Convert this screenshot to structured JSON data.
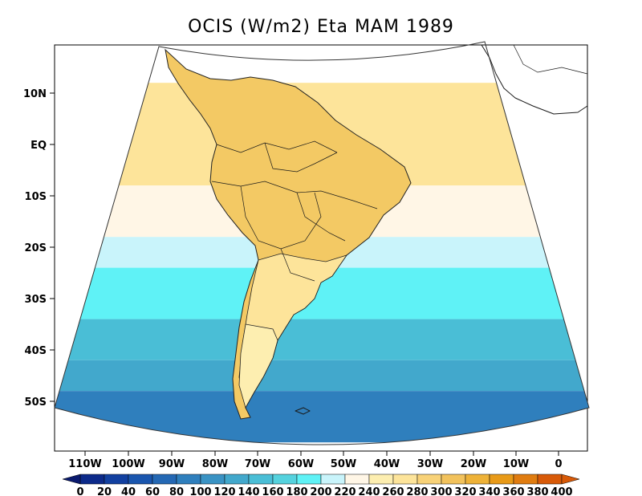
{
  "title": "OCIS (W/m2) Eta MAM 1989",
  "axes": {
    "lat_labels": [
      "10N",
      "EQ",
      "10S",
      "20S",
      "30S",
      "40S",
      "50S"
    ],
    "lon_labels": [
      "110W",
      "100W",
      "90W",
      "80W",
      "70W",
      "60W",
      "50W",
      "40W",
      "30W",
      "20W",
      "10W",
      "0"
    ]
  },
  "colorbar": {
    "labels": [
      "0",
      "20",
      "40",
      "60",
      "80",
      "100",
      "120",
      "140",
      "160",
      "180",
      "200",
      "220",
      "240",
      "260",
      "280",
      "300",
      "320",
      "340",
      "360",
      "380",
      "400"
    ],
    "colors": [
      "#0a1a6e",
      "#0c2a8a",
      "#1240a0",
      "#1a56ae",
      "#2468b4",
      "#2f7fbd",
      "#3a93c4",
      "#42a8cc",
      "#4abed6",
      "#55d2de",
      "#5ff2f6",
      "#c9f4fb",
      "#fff6e6",
      "#fdeeb0",
      "#fde49a",
      "#f8d278",
      "#f2c25c",
      "#eeb238",
      "#e89a18",
      "#e07c10",
      "#d85a08"
    ]
  },
  "chart_data": {
    "type": "heatmap",
    "variable": "OCIS",
    "units": "W/m2",
    "model": "Eta",
    "season": "MAM",
    "year": 1989,
    "colorbar_range": [
      0,
      400
    ],
    "colorbar_step": 20,
    "lat_range": [
      "10N",
      "50S"
    ],
    "lon_range": [
      "110W",
      "0"
    ],
    "field_bands": [
      {
        "lat_from": 12,
        "lat_to": -8,
        "value": 290
      },
      {
        "lat_from": -8,
        "lat_to": -18,
        "value": 255
      },
      {
        "lat_from": -18,
        "lat_to": -24,
        "value": 230
      },
      {
        "lat_from": -24,
        "lat_to": -34,
        "value": 210
      },
      {
        "lat_from": -34,
        "lat_to": -42,
        "value": 170
      },
      {
        "lat_from": -42,
        "lat_to": -48,
        "value": 140
      },
      {
        "lat_from": -48,
        "lat_to": -58,
        "value": 110
      }
    ],
    "land_value": 300
  }
}
